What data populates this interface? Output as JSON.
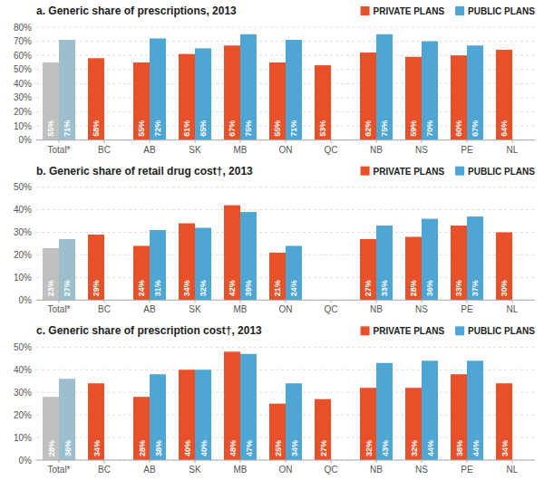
{
  "chart_data": [
    {
      "type": "bar",
      "title": "a. Generic share of prescriptions, 2013",
      "categories": [
        "Total*",
        "BC",
        "AB",
        "SK",
        "MB",
        "ON",
        "QC",
        "NB",
        "NS",
        "PE",
        "NL"
      ],
      "series": [
        {
          "name": "PRIVATE PLANS",
          "color": "#E8502A",
          "colors": [
            "#C0C0C0",
            "#E8502A",
            "#E8502A",
            "#E8502A",
            "#E8502A",
            "#E8502A",
            "#E8502A",
            "#E8502A",
            "#E8502A",
            "#E8502A",
            "#E8502A"
          ],
          "values": [
            55,
            58,
            55,
            61,
            67,
            55,
            53,
            62,
            59,
            60,
            64
          ],
          "value_labels": [
            "55%",
            "58%",
            "55%",
            "61%",
            "67%",
            "55%",
            "53%",
            "62%",
            "59%",
            "60%",
            "64%"
          ]
        },
        {
          "name": "PUBLIC PLANS",
          "color": "#4DA6D4",
          "colors": [
            "#9BBFCF",
            "#4DA6D4",
            "#4DA6D4",
            "#4DA6D4",
            "#4DA6D4",
            "#4DA6D4",
            "#4DA6D4",
            "#4DA6D4",
            "#4DA6D4",
            "#4DA6D4",
            "#4DA6D4"
          ],
          "values": [
            71,
            null,
            72,
            65,
            75,
            71,
            null,
            75,
            70,
            67,
            null
          ],
          "value_labels": [
            "71%",
            null,
            "72%",
            "65%",
            "75%",
            "71%",
            null,
            "75%",
            "70%",
            "67%",
            null
          ]
        }
      ],
      "ylim": [
        0,
        80
      ],
      "yticks": [
        {
          "value": 0,
          "label": "0%"
        },
        {
          "value": 10,
          "label": "10%"
        },
        {
          "value": 20,
          "label": "20%"
        },
        {
          "value": 30,
          "label": "30%"
        },
        {
          "value": 40,
          "label": "40%"
        },
        {
          "value": 50,
          "label": "50%"
        },
        {
          "value": 60,
          "label": "60%"
        },
        {
          "value": 70,
          "label": "70%"
        },
        {
          "value": 80,
          "label": "80%"
        }
      ],
      "grid": true,
      "legend": "upper right",
      "data_labels": true
    },
    {
      "type": "bar",
      "title": "b. Generic share of retail drug cost†, 2013",
      "categories": [
        "Total*",
        "BC",
        "AB",
        "SK",
        "MB",
        "ON",
        "QC",
        "NB",
        "NS",
        "PE",
        "NL"
      ],
      "series": [
        {
          "name": "PRIVATE PLANS",
          "color": "#E8502A",
          "colors": [
            "#C0C0C0",
            "#E8502A",
            "#E8502A",
            "#E8502A",
            "#E8502A",
            "#E8502A",
            "#E8502A",
            "#E8502A",
            "#E8502A",
            "#E8502A",
            "#E8502A"
          ],
          "values": [
            23,
            29,
            24,
            34,
            42,
            21,
            null,
            27,
            28,
            33,
            30
          ],
          "value_labels": [
            "23%",
            "29%",
            "24%",
            "34%",
            "42%",
            "21%",
            null,
            "27%",
            "28%",
            "33%",
            "30%"
          ]
        },
        {
          "name": "PUBLIC PLANS",
          "color": "#4DA6D4",
          "colors": [
            "#9BBFCF",
            "#4DA6D4",
            "#4DA6D4",
            "#4DA6D4",
            "#4DA6D4",
            "#4DA6D4",
            "#4DA6D4",
            "#4DA6D4",
            "#4DA6D4",
            "#4DA6D4",
            "#4DA6D4"
          ],
          "values": [
            27,
            null,
            31,
            32,
            39,
            24,
            null,
            33,
            36,
            37,
            null
          ],
          "value_labels": [
            "27%",
            null,
            "31%",
            "32%",
            "39%",
            "24%",
            null,
            "33%",
            "36%",
            "37%",
            null
          ]
        }
      ],
      "ylim": [
        0,
        50
      ],
      "yticks": [
        {
          "value": 0,
          "label": "0%"
        },
        {
          "value": 10,
          "label": "10%"
        },
        {
          "value": 20,
          "label": "20%"
        },
        {
          "value": 30,
          "label": "30%"
        },
        {
          "value": 40,
          "label": "40%"
        },
        {
          "value": 50,
          "label": "50%"
        }
      ],
      "grid": true,
      "legend": "upper right",
      "data_labels": true
    },
    {
      "type": "bar",
      "title": "c. Generic share of prescription cost†, 2013",
      "categories": [
        "Total*",
        "BC",
        "AB",
        "SK",
        "MB",
        "ON",
        "QC",
        "NB",
        "NS",
        "PE",
        "NL"
      ],
      "series": [
        {
          "name": "PRIVATE PLANS",
          "color": "#E8502A",
          "colors": [
            "#C0C0C0",
            "#E8502A",
            "#E8502A",
            "#E8502A",
            "#E8502A",
            "#E8502A",
            "#E8502A",
            "#E8502A",
            "#E8502A",
            "#E8502A",
            "#E8502A"
          ],
          "values": [
            28,
            34,
            28,
            40,
            48,
            25,
            27,
            32,
            32,
            38,
            34
          ],
          "value_labels": [
            "28%",
            "34%",
            "28%",
            "40%",
            "48%",
            "25%",
            "27%",
            "32%",
            "32%",
            "38%",
            "34%"
          ]
        },
        {
          "name": "PUBLIC PLANS",
          "color": "#4DA6D4",
          "colors": [
            "#9BBFCF",
            "#4DA6D4",
            "#4DA6D4",
            "#4DA6D4",
            "#4DA6D4",
            "#4DA6D4",
            "#4DA6D4",
            "#4DA6D4",
            "#4DA6D4",
            "#4DA6D4",
            "#4DA6D4"
          ],
          "values": [
            36,
            null,
            38,
            40,
            47,
            34,
            null,
            43,
            44,
            44,
            null
          ],
          "value_labels": [
            "36%",
            null,
            "38%",
            "40%",
            "47%",
            "34%",
            null,
            "43%",
            "44%",
            "44%",
            null
          ]
        }
      ],
      "ylim": [
        0,
        50
      ],
      "yticks": [
        {
          "value": 0,
          "label": "0%"
        },
        {
          "value": 10,
          "label": "10%"
        },
        {
          "value": 20,
          "label": "20%"
        },
        {
          "value": 30,
          "label": "30%"
        },
        {
          "value": 40,
          "label": "40%"
        },
        {
          "value": 50,
          "label": "50%"
        }
      ],
      "grid": true,
      "legend": "upper right",
      "data_labels": true
    }
  ]
}
